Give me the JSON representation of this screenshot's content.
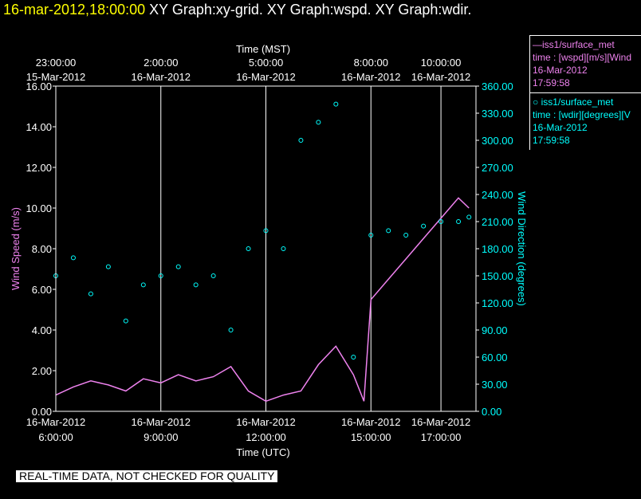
{
  "header": {
    "timestamp": "16-mar-2012,18:00:00",
    "graphs": [
      "XY Graph:xy-grid.",
      "XY Graph:wspd.",
      "XY Graph:wdir."
    ]
  },
  "banner": "REAL-TIME DATA, NOT CHECKED FOR QUALITY",
  "legend": [
    {
      "line1": "—iss1/surface_met",
      "line2": "time : [wspd][m/s][Wind",
      "line3": "16-Mar-2012",
      "line4": "17:59:58",
      "color": "#ee82ee"
    },
    {
      "line1": "○ iss1/surface_met",
      "line2": "time : [wdir][degrees][V",
      "line3": "16-Mar-2012",
      "line4": "17:59:58",
      "color": "#00ffff"
    }
  ],
  "chart_data": {
    "type": "line",
    "top_axis": {
      "title": "Time (MST)",
      "ticks": [
        {
          "hour": 6,
          "line1": "23:00:00",
          "line2": "15-Mar-2012"
        },
        {
          "hour": 9,
          "line1": "2:00:00",
          "line2": "16-Mar-2012"
        },
        {
          "hour": 12,
          "line1": "5:00:00",
          "line2": "16-Mar-2012"
        },
        {
          "hour": 15,
          "line1": "8:00:00",
          "line2": "16-Mar-2012"
        },
        {
          "hour": 17,
          "line1": "10:00:00",
          "line2": "16-Mar-2012"
        }
      ]
    },
    "bottom_axis": {
      "title": "Time (UTC)",
      "xlim": [
        6,
        18
      ],
      "ticks": [
        {
          "hour": 6,
          "line1": "16-Mar-2012",
          "line2": "6:00:00"
        },
        {
          "hour": 9,
          "line1": "16-Mar-2012",
          "line2": "9:00:00"
        },
        {
          "hour": 12,
          "line1": "16-Mar-2012",
          "line2": "12:00:00"
        },
        {
          "hour": 15,
          "line1": "16-Mar-2012",
          "line2": "15:00:00"
        },
        {
          "hour": 17,
          "line1": "16-Mar-2012",
          "line2": "17:00:00"
        }
      ]
    },
    "left_axis": {
      "title": "Wind Speed (m/s)",
      "ylim": [
        0,
        16
      ],
      "ticks": [
        "0.00",
        "2.00",
        "4.00",
        "6.00",
        "8.00",
        "10.00",
        "12.00",
        "14.00",
        "16.00"
      ],
      "color": "#ee82ee"
    },
    "right_axis": {
      "title": "Wind Direction (degrees)",
      "ylim": [
        0,
        360
      ],
      "ticks": [
        "0.00",
        "30.00",
        "60.00",
        "90.00",
        "120.00",
        "150.00",
        "180.00",
        "210.00",
        "240.00",
        "270.00",
        "300.00",
        "330.00",
        "360.00"
      ],
      "color": "#00ffff"
    },
    "grid": true,
    "series": [
      {
        "name": "iss1/surface_met time : [wspd][m/s]",
        "axis": "left",
        "color": "#ee82ee",
        "x": [
          6.0,
          6.5,
          7.0,
          7.5,
          8.0,
          8.5,
          9.0,
          9.5,
          10.0,
          10.5,
          11.0,
          11.5,
          12.0,
          12.5,
          13.0,
          13.5,
          14.0,
          14.5,
          14.8,
          15.0,
          15.5,
          16.0,
          16.5,
          17.0,
          17.5,
          17.8
        ],
        "y": [
          0.8,
          1.2,
          1.5,
          1.3,
          1.0,
          1.6,
          1.4,
          1.8,
          1.5,
          1.7,
          2.2,
          1.0,
          0.5,
          0.8,
          1.0,
          2.3,
          3.2,
          1.8,
          0.5,
          5.5,
          6.5,
          7.5,
          8.5,
          9.5,
          10.5,
          10.0
        ]
      },
      {
        "name": "iss1/surface_met time : [wdir][degrees]",
        "axis": "right",
        "color": "#00ffff",
        "x": [
          6.0,
          6.5,
          7.0,
          7.5,
          8.0,
          8.5,
          9.0,
          9.5,
          10.0,
          10.5,
          11.0,
          11.5,
          12.0,
          12.5,
          13.0,
          13.5,
          14.0,
          14.5,
          15.0,
          15.5,
          16.0,
          16.5,
          17.0,
          17.5,
          17.8
        ],
        "y": [
          150,
          170,
          130,
          160,
          100,
          140,
          150,
          160,
          140,
          150,
          90,
          180,
          200,
          180,
          300,
          320,
          340,
          60,
          195,
          200,
          195,
          205,
          210,
          210,
          215
        ]
      }
    ]
  }
}
